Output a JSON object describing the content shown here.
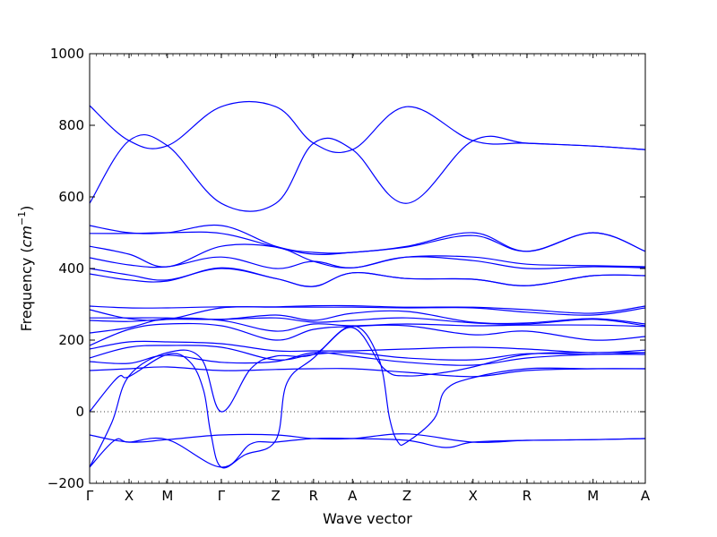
{
  "chart_data": {
    "type": "line",
    "xlabel": "Wave vector",
    "ylabel_main": "Frequency (",
    "ylabel_unit": "cm",
    "ylabel_exp": "−1",
    "ylabel_close": ")",
    "ylim": [
      -200,
      1000
    ],
    "yticks": [
      {
        "value": -200,
        "label": "−200"
      },
      {
        "value": 0,
        "label": "0"
      },
      {
        "value": 200,
        "label": "200"
      },
      {
        "value": 400,
        "label": "400"
      },
      {
        "value": 600,
        "label": "600"
      },
      {
        "value": 800,
        "label": "800"
      },
      {
        "value": 1000,
        "label": "1000"
      }
    ],
    "kpoints": [
      {
        "label": "Γ",
        "pos": 0.0
      },
      {
        "label": "X",
        "pos": 0.071
      },
      {
        "label": "M",
        "pos": 0.14
      },
      {
        "label": "Γ",
        "pos": 0.237
      },
      {
        "label": "Z",
        "pos": 0.335
      },
      {
        "label": "R",
        "pos": 0.403
      },
      {
        "label": "A",
        "pos": 0.473
      },
      {
        "label": "Z",
        "pos": 0.571
      },
      {
        "label": "X",
        "pos": 0.69
      },
      {
        "label": "R",
        "pos": 0.787
      },
      {
        "label": "M",
        "pos": 0.906
      },
      {
        "label": "A",
        "pos": 1.0
      }
    ],
    "zero_line": {
      "value": 0,
      "style": "dotted"
    },
    "series": [
      {
        "values": [
          [
            0,
            855
          ],
          [
            0.071,
            757
          ],
          [
            0.14,
            743
          ],
          [
            0.237,
            852
          ],
          [
            0.335,
            852
          ],
          [
            0.403,
            750
          ],
          [
            0.473,
            732
          ],
          [
            0.571,
            852
          ],
          [
            0.69,
            757
          ],
          [
            0.787,
            750
          ],
          [
            0.906,
            742
          ],
          [
            1.0,
            732
          ]
        ]
      },
      {
        "values": [
          [
            0,
            582
          ],
          [
            0.071,
            757
          ],
          [
            0.14,
            743
          ],
          [
            0.237,
            582
          ],
          [
            0.335,
            582
          ],
          [
            0.403,
            750
          ],
          [
            0.473,
            732
          ],
          [
            0.571,
            582
          ],
          [
            0.69,
            757
          ],
          [
            0.787,
            750
          ],
          [
            0.906,
            742
          ],
          [
            1.0,
            732
          ]
        ]
      },
      {
        "values": [
          [
            0,
            520
          ],
          [
            0.071,
            500
          ],
          [
            0.14,
            500
          ],
          [
            0.237,
            520
          ],
          [
            0.335,
            462
          ],
          [
            0.403,
            445
          ],
          [
            0.473,
            445
          ],
          [
            0.571,
            462
          ],
          [
            0.69,
            500
          ],
          [
            0.787,
            448
          ],
          [
            0.906,
            500
          ],
          [
            1.0,
            448
          ]
        ]
      },
      {
        "values": [
          [
            0,
            498
          ],
          [
            0.071,
            498
          ],
          [
            0.14,
            500
          ],
          [
            0.237,
            498
          ],
          [
            0.335,
            460
          ],
          [
            0.403,
            440
          ],
          [
            0.473,
            445
          ],
          [
            0.571,
            460
          ],
          [
            0.69,
            492
          ],
          [
            0.787,
            448
          ],
          [
            0.906,
            500
          ],
          [
            1.0,
            448
          ]
        ]
      },
      {
        "values": [
          [
            0,
            462
          ],
          [
            0.071,
            440
          ],
          [
            0.14,
            405
          ],
          [
            0.237,
            462
          ],
          [
            0.335,
            460
          ],
          [
            0.403,
            420
          ],
          [
            0.473,
            402
          ],
          [
            0.571,
            432
          ],
          [
            0.69,
            432
          ],
          [
            0.787,
            412
          ],
          [
            0.906,
            408
          ],
          [
            1.0,
            405
          ]
        ]
      },
      {
        "values": [
          [
            0,
            430
          ],
          [
            0.071,
            410
          ],
          [
            0.14,
            405
          ],
          [
            0.237,
            432
          ],
          [
            0.335,
            400
          ],
          [
            0.403,
            420
          ],
          [
            0.473,
            402
          ],
          [
            0.571,
            432
          ],
          [
            0.69,
            422
          ],
          [
            0.787,
            400
          ],
          [
            0.906,
            405
          ],
          [
            1.0,
            402
          ]
        ]
      },
      {
        "values": [
          [
            0,
            400
          ],
          [
            0.071,
            382
          ],
          [
            0.14,
            368
          ],
          [
            0.237,
            400
          ],
          [
            0.335,
            372
          ],
          [
            0.403,
            350
          ],
          [
            0.473,
            388
          ],
          [
            0.571,
            372
          ],
          [
            0.69,
            370
          ],
          [
            0.787,
            352
          ],
          [
            0.906,
            380
          ],
          [
            1.0,
            380
          ]
        ]
      },
      {
        "values": [
          [
            0,
            385
          ],
          [
            0.071,
            368
          ],
          [
            0.14,
            365
          ],
          [
            0.237,
            402
          ],
          [
            0.335,
            372
          ],
          [
            0.403,
            350
          ],
          [
            0.473,
            388
          ],
          [
            0.571,
            372
          ],
          [
            0.69,
            370
          ],
          [
            0.787,
            352
          ],
          [
            0.906,
            380
          ],
          [
            1.0,
            380
          ]
        ]
      },
      {
        "values": [
          [
            0,
            295
          ],
          [
            0.071,
            290
          ],
          [
            0.14,
            290
          ],
          [
            0.237,
            293
          ],
          [
            0.335,
            293
          ],
          [
            0.403,
            296
          ],
          [
            0.473,
            296
          ],
          [
            0.571,
            292
          ],
          [
            0.69,
            292
          ],
          [
            0.787,
            285
          ],
          [
            0.906,
            275
          ],
          [
            1.0,
            295
          ]
        ]
      },
      {
        "values": [
          [
            0,
            285
          ],
          [
            0.071,
            260
          ],
          [
            0.14,
            258
          ],
          [
            0.237,
            290
          ],
          [
            0.335,
            292
          ],
          [
            0.403,
            292
          ],
          [
            0.473,
            292
          ],
          [
            0.571,
            290
          ],
          [
            0.69,
            290
          ],
          [
            0.787,
            278
          ],
          [
            0.906,
            270
          ],
          [
            1.0,
            290
          ]
        ]
      },
      {
        "values": [
          [
            0,
            262
          ],
          [
            0.071,
            262
          ],
          [
            0.14,
            262
          ],
          [
            0.237,
            258
          ],
          [
            0.335,
            270
          ],
          [
            0.403,
            255
          ],
          [
            0.473,
            275
          ],
          [
            0.571,
            280
          ],
          [
            0.69,
            250
          ],
          [
            0.787,
            248
          ],
          [
            0.906,
            260
          ],
          [
            1.0,
            245
          ]
        ]
      },
      {
        "values": [
          [
            0,
            255
          ],
          [
            0.071,
            252
          ],
          [
            0.14,
            258
          ],
          [
            0.237,
            258
          ],
          [
            0.335,
            262
          ],
          [
            0.403,
            250
          ],
          [
            0.473,
            255
          ],
          [
            0.571,
            262
          ],
          [
            0.69,
            248
          ],
          [
            0.787,
            245
          ],
          [
            0.906,
            258
          ],
          [
            1.0,
            240
          ]
        ]
      },
      {
        "values": [
          [
            0,
            220
          ],
          [
            0.071,
            235
          ],
          [
            0.14,
            260
          ],
          [
            0.237,
            255
          ],
          [
            0.335,
            225
          ],
          [
            0.403,
            245
          ],
          [
            0.473,
            240
          ],
          [
            0.571,
            245
          ],
          [
            0.69,
            240
          ],
          [
            0.787,
            242
          ],
          [
            0.906,
            242
          ],
          [
            1.0,
            238
          ]
        ]
      },
      {
        "values": [
          [
            0,
            185
          ],
          [
            0.071,
            230
          ],
          [
            0.14,
            245
          ],
          [
            0.237,
            240
          ],
          [
            0.335,
            200
          ],
          [
            0.403,
            230
          ],
          [
            0.473,
            238
          ],
          [
            0.571,
            240
          ],
          [
            0.69,
            215
          ],
          [
            0.787,
            225
          ],
          [
            0.906,
            200
          ],
          [
            1.0,
            210
          ]
        ]
      },
      {
        "values": [
          [
            0,
            175
          ],
          [
            0.071,
            195
          ],
          [
            0.14,
            195
          ],
          [
            0.237,
            190
          ],
          [
            0.335,
            170
          ],
          [
            0.403,
            170
          ],
          [
            0.473,
            170
          ],
          [
            0.571,
            175
          ],
          [
            0.69,
            180
          ],
          [
            0.787,
            175
          ],
          [
            0.906,
            165
          ],
          [
            1.0,
            172
          ]
        ]
      },
      {
        "values": [
          [
            0,
            150
          ],
          [
            0.071,
            180
          ],
          [
            0.14,
            185
          ],
          [
            0.237,
            180
          ],
          [
            0.335,
            145
          ],
          [
            0.403,
            160
          ],
          [
            0.473,
            165
          ],
          [
            0.571,
            150
          ],
          [
            0.69,
            145
          ],
          [
            0.787,
            162
          ],
          [
            0.906,
            160
          ],
          [
            1.0,
            165
          ]
        ]
      },
      {
        "values": [
          [
            0,
            140
          ],
          [
            0.071,
            135
          ],
          [
            0.14,
            158
          ],
          [
            0.237,
            138
          ],
          [
            0.335,
            140
          ],
          [
            0.403,
            165
          ],
          [
            0.473,
            155
          ],
          [
            0.571,
            138
          ],
          [
            0.69,
            130
          ],
          [
            0.787,
            150
          ],
          [
            0.906,
            160
          ],
          [
            1.0,
            160
          ]
        ]
      },
      {
        "values": [
          [
            0,
            115
          ],
          [
            0.071,
            120
          ],
          [
            0.14,
            125
          ],
          [
            0.237,
            115
          ],
          [
            0.335,
            118
          ],
          [
            0.403,
            120
          ],
          [
            0.473,
            120
          ],
          [
            0.571,
            110
          ],
          [
            0.69,
            98
          ],
          [
            0.787,
            115
          ],
          [
            0.906,
            120
          ],
          [
            1.0,
            120
          ]
        ]
      },
      {
        "values": [
          [
            0,
            0
          ],
          [
            0.05,
            95
          ],
          [
            0.071,
            98
          ],
          [
            0.14,
            160
          ],
          [
            0.18,
            140
          ],
          [
            0.205,
            60
          ],
          [
            0.218,
            -60
          ],
          [
            0.237,
            -155
          ],
          [
            0.28,
            -120
          ],
          [
            0.335,
            -80
          ],
          [
            0.355,
            80
          ],
          [
            0.403,
            150
          ],
          [
            0.473,
            240
          ],
          [
            0.52,
            150
          ],
          [
            0.54,
            -20
          ],
          [
            0.555,
            -85
          ],
          [
            0.571,
            -85
          ],
          [
            0.62,
            -20
          ],
          [
            0.64,
            60
          ],
          [
            0.69,
            95
          ],
          [
            0.787,
            120
          ],
          [
            0.906,
            120
          ],
          [
            1.0,
            120
          ]
        ]
      },
      {
        "values": [
          [
            0,
            -155
          ],
          [
            0.045,
            -80
          ],
          [
            0.071,
            -85
          ],
          [
            0.14,
            -78
          ],
          [
            0.237,
            -155
          ],
          [
            0.29,
            -90
          ],
          [
            0.335,
            -85
          ],
          [
            0.403,
            -75
          ],
          [
            0.473,
            -75
          ],
          [
            0.571,
            -80
          ],
          [
            0.64,
            -100
          ],
          [
            0.69,
            -85
          ],
          [
            0.787,
            -80
          ],
          [
            0.906,
            -78
          ],
          [
            1.0,
            -75
          ]
        ]
      },
      {
        "values": [
          [
            0,
            -65
          ],
          [
            0.071,
            -85
          ],
          [
            0.14,
            -78
          ],
          [
            0.237,
            -65
          ],
          [
            0.335,
            -65
          ],
          [
            0.403,
            -75
          ],
          [
            0.473,
            -75
          ],
          [
            0.571,
            -62
          ],
          [
            0.69,
            -85
          ],
          [
            0.787,
            -80
          ],
          [
            0.906,
            -78
          ],
          [
            1.0,
            -75
          ]
        ]
      },
      {
        "values": [
          [
            0,
            -155
          ],
          [
            0.04,
            -30
          ],
          [
            0.071,
            100
          ],
          [
            0.14,
            165
          ],
          [
            0.2,
            150
          ],
          [
            0.237,
            0
          ],
          [
            0.29,
            120
          ],
          [
            0.335,
            155
          ],
          [
            0.403,
            160
          ],
          [
            0.473,
            235
          ],
          [
            0.53,
            120
          ],
          [
            0.571,
            100
          ],
          [
            0.64,
            110
          ],
          [
            0.69,
            125
          ],
          [
            0.787,
            160
          ],
          [
            0.906,
            165
          ],
          [
            1.0,
            165
          ]
        ]
      }
    ]
  }
}
